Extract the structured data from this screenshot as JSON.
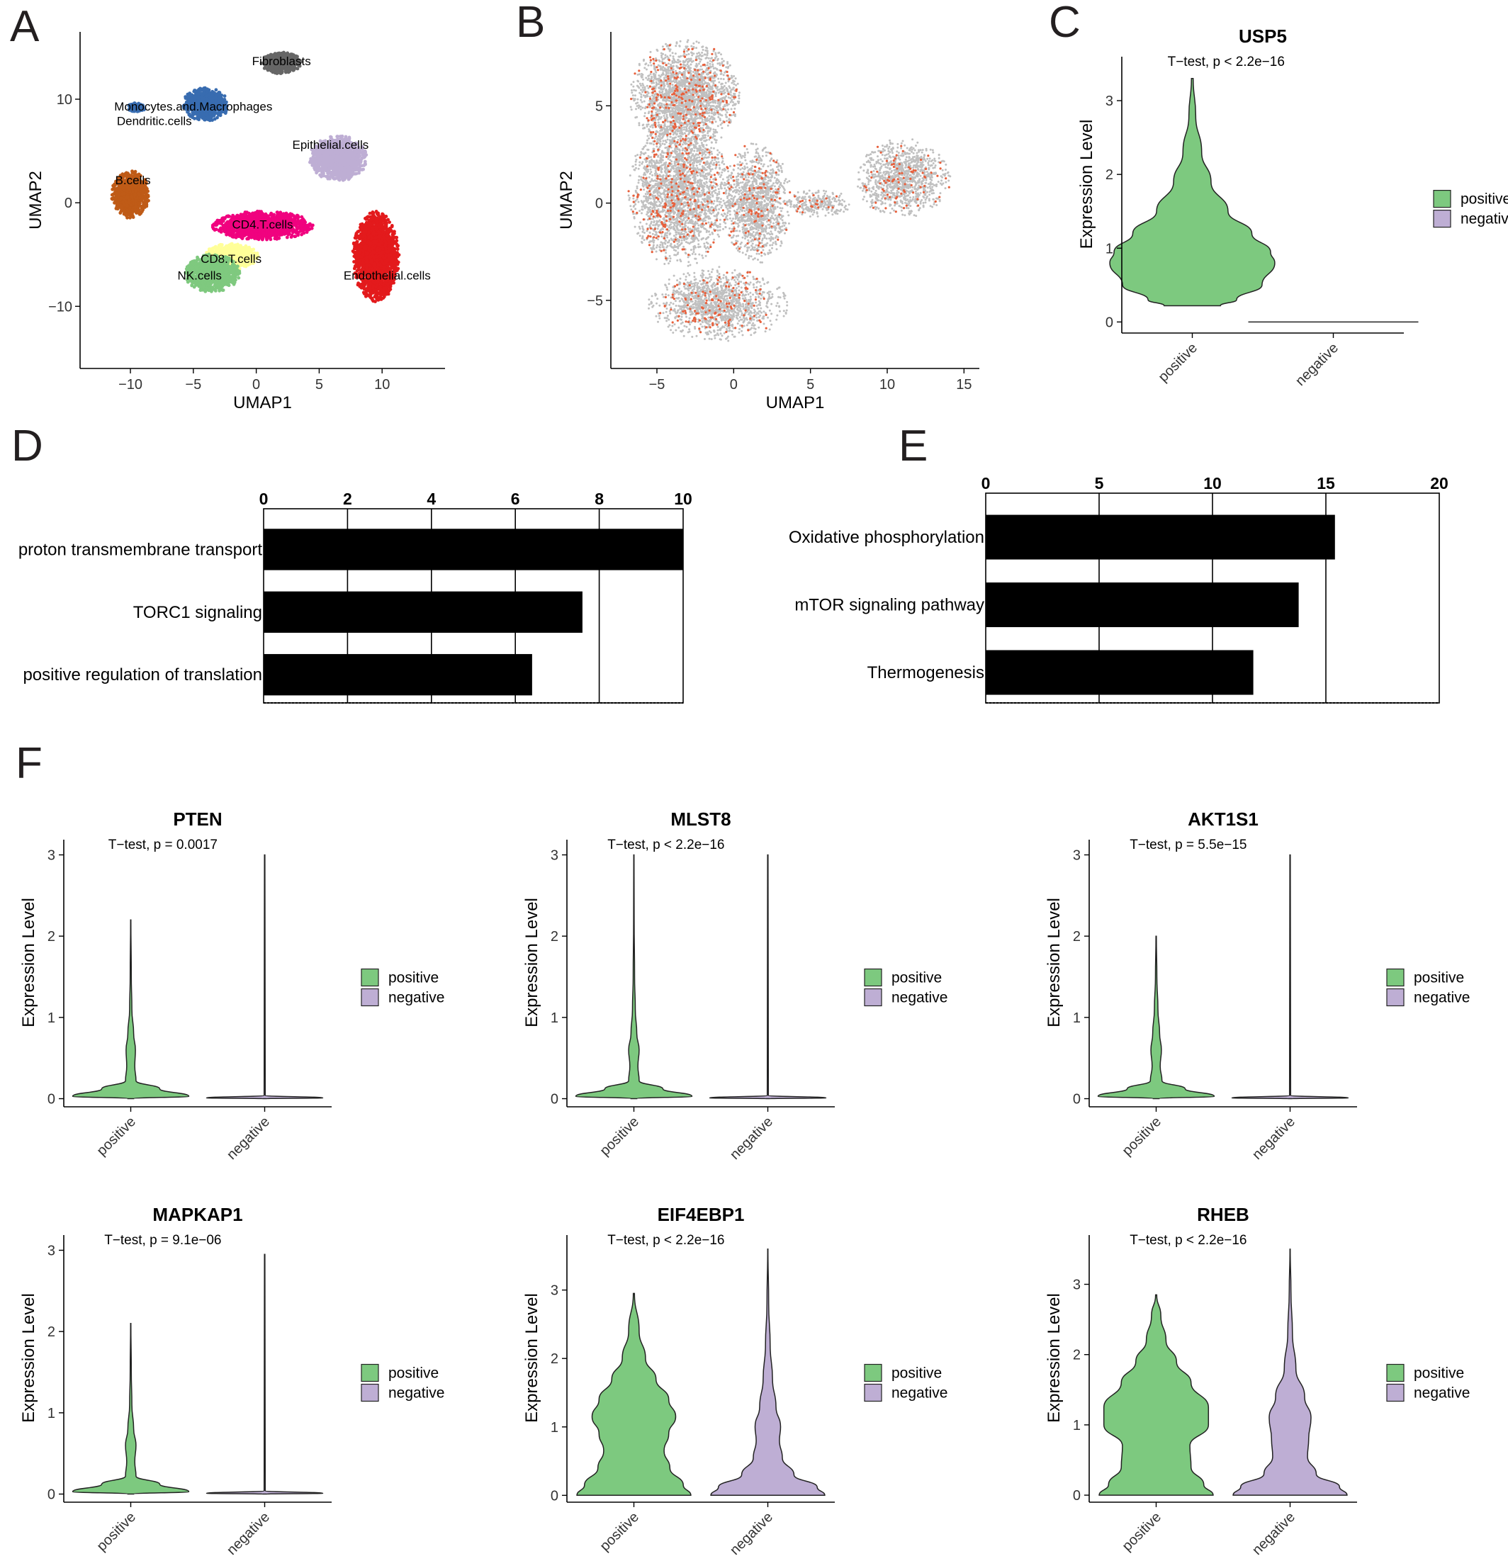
{
  "colors": {
    "positive": "#7dc97f",
    "negative": "#beaed4",
    "umap_gray": "#c0c0c0",
    "umap_red": "#e8603c",
    "bar": "#000000"
  },
  "panels": {
    "A": "A",
    "B": "B",
    "C": "C",
    "D": "D",
    "E": "E",
    "F": "F"
  },
  "chart_data": [
    {
      "id": "A",
      "type": "scatter",
      "xlabel": "UMAP1",
      "ylabel": "UMAP2",
      "xlim": [
        -14,
        15
      ],
      "ylim": [
        -16,
        16.5
      ],
      "xticks": [
        -10,
        -5,
        0,
        5,
        10
      ],
      "yticks": [
        -10,
        0,
        10
      ],
      "clusters": [
        {
          "name": "Fibroblasts",
          "color": "#666666",
          "center": [
            2,
            13.5
          ],
          "spread": [
            1.4,
            0.9
          ]
        },
        {
          "name": "Monocytes.and.Macrophages",
          "color": "#386cb0",
          "center": [
            -4,
            9.5
          ],
          "spread": [
            1.6,
            1.4
          ]
        },
        {
          "name": "Dendritic.cells",
          "color": "#386cb0",
          "center": [
            -9.5,
            9.2
          ],
          "spread": [
            0.6,
            0.4
          ]
        },
        {
          "name": "Epithelial.cells",
          "color": "#beaed4",
          "center": [
            6.5,
            4.3
          ],
          "spread": [
            2.0,
            1.9
          ]
        },
        {
          "name": "B.cells",
          "color": "#bf5b17",
          "center": [
            -10,
            0.8
          ],
          "spread": [
            1.3,
            2.0
          ]
        },
        {
          "name": "CD4.T.cells",
          "color": "#f0027f",
          "center": [
            0.5,
            -2.2
          ],
          "spread": [
            3.5,
            1.2
          ]
        },
        {
          "name": "CD8.T.cells",
          "color": "#ffff99",
          "center": [
            -2,
            -5.2
          ],
          "spread": [
            1.9,
            1.1
          ]
        },
        {
          "name": "NK.cells",
          "color": "#7fc97f",
          "center": [
            -3.5,
            -6.8
          ],
          "spread": [
            1.9,
            1.6
          ]
        },
        {
          "name": "Endothelial.cells",
          "color": "#e31a1c",
          "center": [
            9.5,
            -5.2
          ],
          "spread": [
            1.6,
            3.8
          ]
        }
      ],
      "labels": [
        {
          "text": "Fibroblasts",
          "at": [
            2,
            13.3
          ]
        },
        {
          "text": "Monocytes.and.Macrophages",
          "at": [
            -5,
            8.9
          ]
        },
        {
          "text": "Dendritic.cells",
          "at": [
            -8.1,
            7.5
          ]
        },
        {
          "text": "Epithelial.cells",
          "at": [
            5.9,
            5.2
          ]
        },
        {
          "text": "B.cells",
          "at": [
            -9.8,
            1.8
          ]
        },
        {
          "text": "CD4.T.cells",
          "at": [
            0.5,
            -2.5
          ]
        },
        {
          "text": "CD8.T.cells",
          "at": [
            -2,
            -5.8
          ]
        },
        {
          "text": "NK.cells",
          "at": [
            -4.5,
            -7.4
          ]
        },
        {
          "text": "Endothelial.cells",
          "at": [
            10.4,
            -7.4
          ]
        }
      ]
    },
    {
      "id": "B",
      "type": "scatter",
      "xlabel": "UMAP1",
      "ylabel": "UMAP2",
      "xlim": [
        -8,
        16
      ],
      "ylim": [
        -8.5,
        8.8
      ],
      "xticks": [
        -5,
        0,
        5,
        10,
        15
      ],
      "yticks": [
        -5,
        0,
        5
      ]
    },
    {
      "id": "C",
      "type": "violin",
      "title": "USP5",
      "annotation": "T−test, p < 2.2e−16",
      "ylabel": "Expression Level",
      "ylim": [
        -0.15,
        3.5
      ],
      "yticks": [
        0,
        1,
        2,
        3
      ],
      "categories": [
        "positive",
        "negative"
      ],
      "legend": [
        "positive",
        "negative"
      ],
      "series": [
        {
          "name": "positive",
          "min": 0.22,
          "max": 3.3,
          "density": [
            [
              0.22,
              0.33
            ],
            [
              0.3,
              0.52
            ],
            [
              0.5,
              0.82
            ],
            [
              0.8,
              0.97
            ],
            [
              0.95,
              0.92
            ],
            [
              1.2,
              0.7
            ],
            [
              1.5,
              0.42
            ],
            [
              1.9,
              0.22
            ],
            [
              2.3,
              0.11
            ],
            [
              2.8,
              0.04
            ],
            [
              3.3,
              0.01
            ]
          ]
        },
        {
          "name": "negative",
          "min": 0,
          "max": 0,
          "density": []
        }
      ]
    },
    {
      "id": "D",
      "type": "bar",
      "orientation": "horizontal",
      "categories": [
        "proton transmembrane transport",
        "TORC1 signaling",
        "positive regulation of translation"
      ],
      "values": [
        10,
        7.6,
        6.4
      ],
      "xlim": [
        0,
        10
      ],
      "xticks": [
        0,
        2,
        4,
        6,
        8,
        10
      ]
    },
    {
      "id": "E",
      "type": "bar",
      "orientation": "horizontal",
      "categories": [
        "Oxidative phosphorylation",
        "mTOR signaling pathway",
        "Thermogenesis"
      ],
      "values": [
        15.4,
        13.8,
        11.8
      ],
      "xlim": [
        0,
        20
      ],
      "xticks": [
        0,
        5,
        10,
        15,
        20
      ]
    },
    {
      "id": "F1",
      "type": "violin",
      "title": "PTEN",
      "annotation": "T−test, p = 0.0017",
      "ylabel": "Expression Level",
      "ylim": [
        -0.1,
        3.1
      ],
      "yticks": [
        0,
        1,
        2,
        3
      ],
      "categories": [
        "positive",
        "negative"
      ],
      "legend": [
        "positive",
        "negative"
      ],
      "series": [
        {
          "name": "positive",
          "min": 0,
          "max": 2.2,
          "density": [
            [
              0,
              0.05
            ],
            [
              0.03,
              1.0
            ],
            [
              0.12,
              0.5
            ],
            [
              0.22,
              0.09
            ],
            [
              0.4,
              0.07
            ],
            [
              0.6,
              0.08
            ],
            [
              0.8,
              0.05
            ],
            [
              1.1,
              0.02
            ],
            [
              1.5,
              0.01
            ],
            [
              2.2,
              0.003
            ]
          ]
        },
        {
          "name": "negative",
          "min": 0,
          "max": 3.0,
          "density": [
            [
              0,
              0.03
            ],
            [
              0.01,
              1.0
            ],
            [
              0.04,
              0.01
            ],
            [
              3.0,
              0.004
            ]
          ]
        }
      ]
    },
    {
      "id": "F2",
      "type": "violin",
      "title": "MLST8",
      "annotation": "T−test, p < 2.2e−16",
      "ylabel": "Expression Level",
      "ylim": [
        -0.1,
        3.1
      ],
      "yticks": [
        0,
        1,
        2,
        3
      ],
      "categories": [
        "positive",
        "negative"
      ],
      "legend": [
        "positive",
        "negative"
      ],
      "series": [
        {
          "name": "positive",
          "min": 0,
          "max": 3.0,
          "density": [
            [
              0,
              0.05
            ],
            [
              0.03,
              1.0
            ],
            [
              0.12,
              0.5
            ],
            [
              0.22,
              0.09
            ],
            [
              0.4,
              0.07
            ],
            [
              0.6,
              0.09
            ],
            [
              0.8,
              0.05
            ],
            [
              1.1,
              0.025
            ],
            [
              1.5,
              0.012
            ],
            [
              2.2,
              0.005
            ],
            [
              3.0,
              0.002
            ]
          ]
        },
        {
          "name": "negative",
          "min": 0,
          "max": 3.0,
          "density": [
            [
              0,
              0.03
            ],
            [
              0.01,
              1.0
            ],
            [
              0.04,
              0.01
            ],
            [
              3.0,
              0.004
            ]
          ]
        }
      ]
    },
    {
      "id": "F3",
      "type": "violin",
      "title": "AKT1S1",
      "annotation": "T−test, p = 5.5e−15",
      "ylabel": "Expression Level",
      "ylim": [
        -0.1,
        3.1
      ],
      "yticks": [
        0,
        1,
        2,
        3
      ],
      "categories": [
        "positive",
        "negative"
      ],
      "legend": [
        "positive",
        "negative"
      ],
      "series": [
        {
          "name": "positive",
          "min": 0,
          "max": 2.0,
          "density": [
            [
              0,
              0.05
            ],
            [
              0.03,
              1.0
            ],
            [
              0.12,
              0.5
            ],
            [
              0.22,
              0.1
            ],
            [
              0.4,
              0.07
            ],
            [
              0.6,
              0.09
            ],
            [
              0.8,
              0.06
            ],
            [
              1.1,
              0.03
            ],
            [
              1.5,
              0.012
            ],
            [
              2.0,
              0.004
            ]
          ]
        },
        {
          "name": "negative",
          "min": 0,
          "max": 3.0,
          "density": [
            [
              0,
              0.03
            ],
            [
              0.01,
              1.0
            ],
            [
              0.04,
              0.01
            ],
            [
              3.0,
              0.004
            ]
          ]
        }
      ]
    },
    {
      "id": "F4",
      "type": "violin",
      "title": "MAPKAP1",
      "annotation": "T−test, p = 9.1e−06",
      "ylabel": "Expression Level",
      "ylim": [
        -0.1,
        3.1
      ],
      "yticks": [
        0,
        1,
        2,
        3
      ],
      "categories": [
        "positive",
        "negative"
      ],
      "legend": [
        "positive",
        "negative"
      ],
      "series": [
        {
          "name": "positive",
          "min": 0,
          "max": 2.1,
          "density": [
            [
              0,
              0.05
            ],
            [
              0.03,
              1.0
            ],
            [
              0.12,
              0.5
            ],
            [
              0.22,
              0.09
            ],
            [
              0.4,
              0.07
            ],
            [
              0.6,
              0.09
            ],
            [
              0.8,
              0.05
            ],
            [
              1.1,
              0.02
            ],
            [
              1.5,
              0.01
            ],
            [
              2.1,
              0.003
            ]
          ]
        },
        {
          "name": "negative",
          "min": 0,
          "max": 2.95,
          "density": [
            [
              0,
              0.03
            ],
            [
              0.01,
              1.0
            ],
            [
              0.04,
              0.01
            ],
            [
              2.95,
              0.004
            ]
          ]
        }
      ]
    },
    {
      "id": "F5",
      "type": "violin",
      "title": "EIF4EBP1",
      "annotation": "T−test, p < 2.2e−16",
      "ylabel": "Expression Level",
      "ylim": [
        -0.1,
        3.7
      ],
      "yticks": [
        0,
        1,
        2,
        3
      ],
      "categories": [
        "positive",
        "negative"
      ],
      "legend": [
        "positive",
        "negative"
      ],
      "series": [
        {
          "name": "positive",
          "min": 0,
          "max": 2.95,
          "density": [
            [
              0,
              0.98
            ],
            [
              0.15,
              0.85
            ],
            [
              0.4,
              0.62
            ],
            [
              0.65,
              0.52
            ],
            [
              0.9,
              0.6
            ],
            [
              1.15,
              0.72
            ],
            [
              1.4,
              0.6
            ],
            [
              1.7,
              0.38
            ],
            [
              2.0,
              0.2
            ],
            [
              2.4,
              0.09
            ],
            [
              2.95,
              0.01
            ]
          ]
        },
        {
          "name": "negative",
          "min": 0,
          "max": 3.6,
          "density": [
            [
              0,
              0.98
            ],
            [
              0.12,
              0.85
            ],
            [
              0.3,
              0.45
            ],
            [
              0.55,
              0.25
            ],
            [
              0.8,
              0.2
            ],
            [
              1.0,
              0.22
            ],
            [
              1.3,
              0.14
            ],
            [
              1.7,
              0.08
            ],
            [
              2.2,
              0.04
            ],
            [
              2.8,
              0.015
            ],
            [
              3.6,
              0.003
            ]
          ]
        }
      ]
    },
    {
      "id": "F6",
      "type": "violin",
      "title": "RHEB",
      "annotation": "T−test, p < 2.2e−16",
      "ylabel": "Expression Level",
      "ylim": [
        -0.1,
        3.6
      ],
      "yticks": [
        0,
        1,
        2,
        3
      ],
      "categories": [
        "positive",
        "negative"
      ],
      "legend": [
        "positive",
        "negative"
      ],
      "series": [
        {
          "name": "positive",
          "min": 0,
          "max": 2.85,
          "density": [
            [
              0,
              0.98
            ],
            [
              0.15,
              0.82
            ],
            [
              0.4,
              0.6
            ],
            [
              0.7,
              0.58
            ],
            [
              1.0,
              0.9
            ],
            [
              1.25,
              0.9
            ],
            [
              1.6,
              0.6
            ],
            [
              1.9,
              0.35
            ],
            [
              2.2,
              0.17
            ],
            [
              2.55,
              0.08
            ],
            [
              2.85,
              0.01
            ]
          ]
        },
        {
          "name": "negative",
          "min": 0,
          "max": 3.5,
          "density": [
            [
              0,
              0.98
            ],
            [
              0.12,
              0.85
            ],
            [
              0.3,
              0.45
            ],
            [
              0.55,
              0.3
            ],
            [
              0.8,
              0.32
            ],
            [
              1.1,
              0.36
            ],
            [
              1.4,
              0.25
            ],
            [
              1.8,
              0.1
            ],
            [
              2.3,
              0.04
            ],
            [
              2.9,
              0.015
            ],
            [
              3.5,
              0.003
            ]
          ]
        }
      ]
    }
  ]
}
